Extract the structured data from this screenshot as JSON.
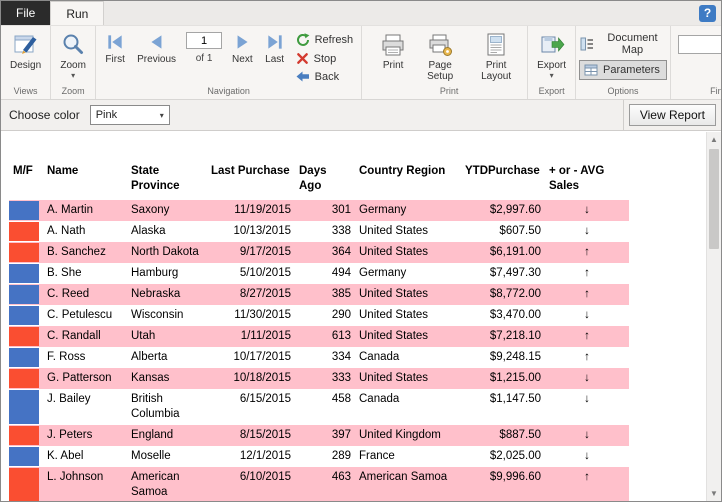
{
  "window": {
    "help": "?"
  },
  "tabs": {
    "file": "File",
    "run": "Run"
  },
  "ribbon": {
    "views": {
      "label": "Views",
      "design": "Design"
    },
    "zoom": {
      "label": "Zoom",
      "zoom": "Zoom"
    },
    "navigation": {
      "label": "Navigation",
      "first": "First",
      "previous": "Previous",
      "page_value": "1",
      "of_text": "of 1",
      "next": "Next",
      "last": "Last",
      "refresh": "Refresh",
      "stop": "Stop",
      "back": "Back"
    },
    "print": {
      "label": "Print",
      "print": "Print",
      "page_setup": "Page Setup",
      "print_layout": "Print Layout"
    },
    "export": {
      "label": "Export",
      "export": "Export"
    },
    "options": {
      "label": "Options",
      "document_map": "Document Map",
      "parameters": "Parameters"
    },
    "find": {
      "label": "Find",
      "input_value": ""
    }
  },
  "parameters": {
    "label": "Choose color",
    "selected": "Pink",
    "view_report": "View Report"
  },
  "table": {
    "headers": [
      "M/F",
      "Name",
      "State Province",
      "Last Purchase",
      "Days Ago",
      "Country Region",
      "YTDPurchase",
      "+ or - AVG Sales"
    ],
    "rows": [
      {
        "mf_color": "#4573c4",
        "name": "A. Martin",
        "state": "Saxony",
        "last_purchase": "11/19/2015",
        "days_ago": "301",
        "country": "Germany",
        "ytd": "$2,997.60",
        "trend": "down"
      },
      {
        "mf_color": "#fa4e31",
        "name": "A. Nath",
        "state": "Alaska",
        "last_purchase": "10/13/2015",
        "days_ago": "338",
        "country": "United States",
        "ytd": "$607.50",
        "trend": "down"
      },
      {
        "mf_color": "#fa4e31",
        "name": "B. Sanchez",
        "state": "North Dakota",
        "last_purchase": "9/17/2015",
        "days_ago": "364",
        "country": "United States",
        "ytd": "$6,191.00",
        "trend": "up"
      },
      {
        "mf_color": "#4573c4",
        "name": "B. She",
        "state": "Hamburg",
        "last_purchase": "5/10/2015",
        "days_ago": "494",
        "country": "Germany",
        "ytd": "$7,497.30",
        "trend": "up"
      },
      {
        "mf_color": "#4573c4",
        "name": "C. Reed",
        "state": "Nebraska",
        "last_purchase": "8/27/2015",
        "days_ago": "385",
        "country": "United States",
        "ytd": "$8,772.00",
        "trend": "up"
      },
      {
        "mf_color": "#4573c4",
        "name": "C. Petulescu",
        "state": "Wisconsin",
        "last_purchase": "11/30/2015",
        "days_ago": "290",
        "country": "United States",
        "ytd": "$3,470.00",
        "trend": "down"
      },
      {
        "mf_color": "#fa4e31",
        "name": "C. Randall",
        "state": "Utah",
        "last_purchase": "1/11/2015",
        "days_ago": "613",
        "country": "United States",
        "ytd": "$7,218.10",
        "trend": "up"
      },
      {
        "mf_color": "#4573c4",
        "name": "F. Ross",
        "state": "Alberta",
        "last_purchase": "10/17/2015",
        "days_ago": "334",
        "country": "Canada",
        "ytd": "$9,248.15",
        "trend": "up"
      },
      {
        "mf_color": "#fa4e31",
        "name": "G. Patterson",
        "state": "Kansas",
        "last_purchase": "10/18/2015",
        "days_ago": "333",
        "country": "United States",
        "ytd": "$1,215.00",
        "trend": "down"
      },
      {
        "mf_color": "#4573c4",
        "name": "J. Bailey",
        "state": "British Columbia",
        "last_purchase": "6/15/2015",
        "days_ago": "458",
        "country": "Canada",
        "ytd": "$1,147.50",
        "trend": "down"
      },
      {
        "mf_color": "#fa4e31",
        "name": "J. Peters",
        "state": "England",
        "last_purchase": "8/15/2015",
        "days_ago": "397",
        "country": "United Kingdom",
        "ytd": "$887.50",
        "trend": "down"
      },
      {
        "mf_color": "#4573c4",
        "name": "K. Abel",
        "state": "Moselle",
        "last_purchase": "12/1/2015",
        "days_ago": "289",
        "country": "France",
        "ytd": "$2,025.00",
        "trend": "down"
      },
      {
        "mf_color": "#fa4e31",
        "name": "L. Johnson",
        "state": "American Samoa",
        "last_purchase": "6/10/2015",
        "days_ago": "463",
        "country": "American Samoa",
        "ytd": "$9,996.60",
        "trend": "up"
      }
    ]
  },
  "colors": {
    "row_band": "#ffc0cb",
    "male_swatch": "#4573c4",
    "female_swatch": "#fa4e31"
  }
}
